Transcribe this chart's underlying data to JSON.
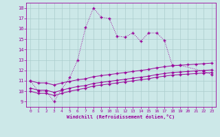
{
  "xlabel": "Windchill (Refroidissement éolien,°C)",
  "background_color": "#cce8e8",
  "line_color": "#990099",
  "grid_color": "#aacccc",
  "x_hours": [
    0,
    1,
    2,
    3,
    4,
    5,
    6,
    7,
    8,
    9,
    10,
    11,
    12,
    13,
    14,
    15,
    16,
    17,
    18,
    19,
    20,
    21,
    22,
    23
  ],
  "series1": [
    11.0,
    10.0,
    10.0,
    9.0,
    10.2,
    11.3,
    13.0,
    16.1,
    18.0,
    17.1,
    17.0,
    15.3,
    15.2,
    15.6,
    14.8,
    15.6,
    15.6,
    14.9,
    12.5,
    12.5,
    null,
    null,
    11.9,
    11.6
  ],
  "series2": [
    10.0,
    9.8,
    9.8,
    9.6,
    9.8,
    10.0,
    10.15,
    10.3,
    10.5,
    10.6,
    10.7,
    10.8,
    10.9,
    11.0,
    11.1,
    11.2,
    11.35,
    11.45,
    11.55,
    11.6,
    11.65,
    11.7,
    11.75,
    11.8
  ],
  "series3": [
    10.3,
    10.1,
    10.1,
    9.9,
    10.1,
    10.3,
    10.45,
    10.55,
    10.75,
    10.85,
    10.95,
    11.05,
    11.15,
    11.25,
    11.35,
    11.45,
    11.6,
    11.7,
    11.8,
    11.85,
    11.9,
    11.95,
    12.0,
    12.05
  ],
  "series4": [
    11.0,
    10.8,
    10.8,
    10.6,
    10.8,
    10.95,
    11.1,
    11.2,
    11.4,
    11.5,
    11.6,
    11.7,
    11.8,
    11.9,
    12.0,
    12.1,
    12.25,
    12.35,
    12.45,
    12.5,
    12.55,
    12.6,
    12.65,
    12.7
  ],
  "ylim": [
    8.5,
    18.5
  ],
  "yticks": [
    9,
    10,
    11,
    12,
    13,
    14,
    15,
    16,
    17,
    18
  ],
  "xlim": [
    -0.5,
    23.5
  ],
  "xticks": [
    0,
    1,
    2,
    3,
    4,
    5,
    6,
    7,
    8,
    9,
    10,
    11,
    12,
    13,
    14,
    15,
    16,
    17,
    18,
    19,
    20,
    21,
    22,
    23
  ]
}
